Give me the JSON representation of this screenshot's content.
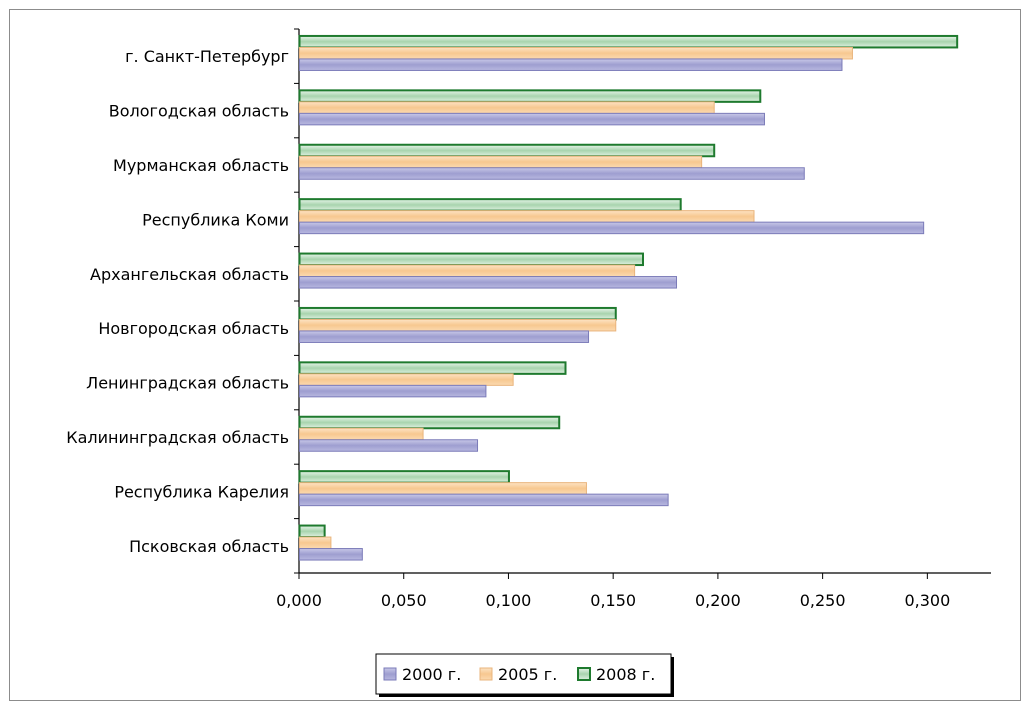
{
  "chart_data": {
    "type": "bar",
    "orientation": "horizontal",
    "categories": [
      "г. Санкт-Петербург",
      "Вологодская область",
      "Мурманская область",
      "Республика Коми",
      "Архангельская область",
      "Новгородская область",
      "Ленинградская область",
      "Калининградская область",
      "Республика Карелия",
      "Псковская область"
    ],
    "series": [
      {
        "name": "2000 г.",
        "color": "#9999CC",
        "values": [
          0.259,
          0.222,
          0.241,
          0.298,
          0.18,
          0.138,
          0.089,
          0.085,
          0.176,
          0.03
        ]
      },
      {
        "name": "2005 г.",
        "color": "#F8CFA0",
        "values": [
          0.264,
          0.198,
          0.192,
          0.217,
          0.16,
          0.151,
          0.102,
          0.059,
          0.137,
          0.015
        ]
      },
      {
        "name": "2008 г.",
        "color": "#2E8B3E",
        "values": [
          0.314,
          0.22,
          0.198,
          0.182,
          0.164,
          0.151,
          0.127,
          0.124,
          0.1,
          0.012
        ]
      }
    ],
    "x_ticks": [
      "0,000",
      "0,050",
      "0,100",
      "0,150",
      "0,200",
      "0,250",
      "0,300"
    ],
    "xlim": [
      0,
      0.33
    ],
    "tick_step": 0.05,
    "grid": false,
    "legend_position": "bottom"
  }
}
